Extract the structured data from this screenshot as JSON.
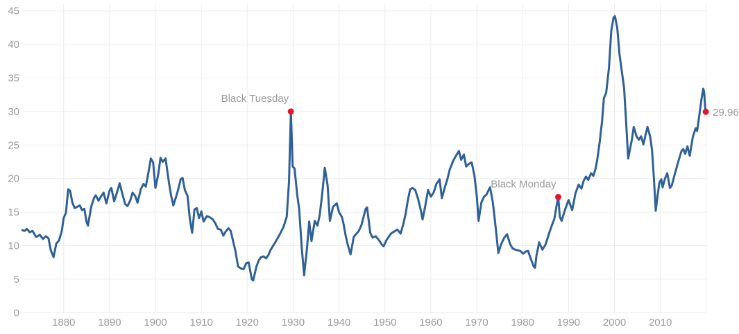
{
  "chart_data": {
    "type": "line",
    "title": "",
    "xlabel": "",
    "ylabel": "",
    "grid": true,
    "legend": false,
    "xlim": [
      1871,
      2020
    ],
    "ylim": [
      0,
      45
    ],
    "y_ticks": [
      {
        "value": 0,
        "label": "0"
      },
      {
        "value": 5,
        "label": "5"
      },
      {
        "value": 10,
        "label": "10"
      },
      {
        "value": 15,
        "label": "15"
      },
      {
        "value": 20,
        "label": "20"
      },
      {
        "value": 25,
        "label": "25"
      },
      {
        "value": 30,
        "label": "30"
      },
      {
        "value": 35,
        "label": "35"
      },
      {
        "value": 40,
        "label": "40"
      },
      {
        "value": 45,
        "label": "45"
      }
    ],
    "x_ticks": [
      {
        "year": 1880,
        "label": "1880"
      },
      {
        "year": 1890,
        "label": "1890"
      },
      {
        "year": 1900,
        "label": "1900"
      },
      {
        "year": 1910,
        "label": "1910"
      },
      {
        "year": 1920,
        "label": "1920"
      },
      {
        "year": 1930,
        "label": "1930"
      },
      {
        "year": 1940,
        "label": "1940"
      },
      {
        "year": 1950,
        "label": "1950"
      },
      {
        "year": 1960,
        "label": "1960"
      },
      {
        "year": 1970,
        "label": "1970"
      },
      {
        "year": 1980,
        "label": "1980"
      },
      {
        "year": 1990,
        "label": "1990"
      },
      {
        "year": 2000,
        "label": "2000"
      },
      {
        "year": 2010,
        "label": "2010"
      },
      {
        "year": 2020,
        "label": ""
      }
    ],
    "series": {
      "points": [
        [
          1871.0,
          12.3
        ],
        [
          1871.5,
          12.2
        ],
        [
          1872.0,
          12.5
        ],
        [
          1872.6,
          12.0
        ],
        [
          1873.2,
          12.2
        ],
        [
          1874.0,
          11.3
        ],
        [
          1874.8,
          11.6
        ],
        [
          1875.5,
          11.0
        ],
        [
          1876.1,
          11.4
        ],
        [
          1876.7,
          11.1
        ],
        [
          1877.2,
          9.3
        ],
        [
          1877.8,
          8.3
        ],
        [
          1878.4,
          10.3
        ],
        [
          1879.0,
          10.8
        ],
        [
          1879.6,
          12.2
        ],
        [
          1880.0,
          14.1
        ],
        [
          1880.5,
          14.9
        ],
        [
          1881.0,
          18.4
        ],
        [
          1881.4,
          18.2
        ],
        [
          1881.9,
          16.4
        ],
        [
          1882.4,
          15.6
        ],
        [
          1883.0,
          15.8
        ],
        [
          1883.5,
          16.0
        ],
        [
          1884.0,
          15.3
        ],
        [
          1884.5,
          15.5
        ],
        [
          1885.0,
          13.5
        ],
        [
          1885.3,
          13.0
        ],
        [
          1886.0,
          15.8
        ],
        [
          1886.6,
          17.1
        ],
        [
          1887.0,
          17.5
        ],
        [
          1887.6,
          16.7
        ],
        [
          1888.2,
          17.4
        ],
        [
          1888.7,
          17.9
        ],
        [
          1889.3,
          16.3
        ],
        [
          1890.0,
          18.2
        ],
        [
          1890.4,
          18.6
        ],
        [
          1891.0,
          16.6
        ],
        [
          1891.6,
          17.9
        ],
        [
          1892.2,
          19.3
        ],
        [
          1892.8,
          17.7
        ],
        [
          1893.4,
          16.2
        ],
        [
          1893.9,
          15.9
        ],
        [
          1894.5,
          16.7
        ],
        [
          1895.0,
          17.9
        ],
        [
          1895.6,
          17.4
        ],
        [
          1896.1,
          16.4
        ],
        [
          1896.8,
          18.4
        ],
        [
          1897.4,
          19.2
        ],
        [
          1897.9,
          18.8
        ],
        [
          1898.5,
          21.0
        ],
        [
          1899.0,
          23.0
        ],
        [
          1899.5,
          22.4
        ],
        [
          1900.0,
          18.6
        ],
        [
          1900.6,
          20.6
        ],
        [
          1901.1,
          23.1
        ],
        [
          1901.6,
          22.5
        ],
        [
          1902.2,
          23.0
        ],
        [
          1902.9,
          19.6
        ],
        [
          1903.4,
          17.5
        ],
        [
          1903.9,
          16.0
        ],
        [
          1904.5,
          17.3
        ],
        [
          1904.9,
          18.2
        ],
        [
          1905.5,
          19.9
        ],
        [
          1905.9,
          20.1
        ],
        [
          1906.4,
          18.3
        ],
        [
          1907.0,
          17.4
        ],
        [
          1907.5,
          14.0
        ],
        [
          1908.0,
          11.9
        ],
        [
          1908.5,
          15.4
        ],
        [
          1909.0,
          15.6
        ],
        [
          1909.5,
          14.1
        ],
        [
          1910.0,
          15.1
        ],
        [
          1910.5,
          13.6
        ],
        [
          1911.2,
          14.4
        ],
        [
          1911.9,
          14.2
        ],
        [
          1912.5,
          13.9
        ],
        [
          1913.0,
          13.4
        ],
        [
          1913.6,
          12.5
        ],
        [
          1914.2,
          12.4
        ],
        [
          1914.8,
          11.5
        ],
        [
          1915.3,
          12.1
        ],
        [
          1915.9,
          12.6
        ],
        [
          1916.4,
          12.2
        ],
        [
          1917.0,
          10.4
        ],
        [
          1917.4,
          9.3
        ],
        [
          1918.0,
          6.9
        ],
        [
          1918.6,
          6.6
        ],
        [
          1919.2,
          6.5
        ],
        [
          1919.8,
          7.4
        ],
        [
          1920.3,
          7.5
        ],
        [
          1921.0,
          5.0
        ],
        [
          1921.3,
          4.8
        ],
        [
          1922.0,
          6.9
        ],
        [
          1922.5,
          7.8
        ],
        [
          1923.0,
          8.3
        ],
        [
          1923.6,
          8.4
        ],
        [
          1924.1,
          8.1
        ],
        [
          1924.6,
          8.6
        ],
        [
          1925.1,
          9.4
        ],
        [
          1926.1,
          10.5
        ],
        [
          1927.1,
          11.7
        ],
        [
          1927.9,
          12.8
        ],
        [
          1928.6,
          14.3
        ],
        [
          1929.1,
          19.5
        ],
        [
          1929.5,
          30.0
        ],
        [
          1929.9,
          21.8
        ],
        [
          1930.3,
          21.5
        ],
        [
          1930.9,
          17.5
        ],
        [
          1931.3,
          15.5
        ],
        [
          1931.9,
          9.5
        ],
        [
          1932.4,
          5.6
        ],
        [
          1933.0,
          9.5
        ],
        [
          1933.5,
          13.6
        ],
        [
          1934.0,
          10.7
        ],
        [
          1934.7,
          13.7
        ],
        [
          1935.3,
          13.0
        ],
        [
          1935.8,
          14.6
        ],
        [
          1936.3,
          17.5
        ],
        [
          1936.9,
          21.6
        ],
        [
          1937.5,
          19.0
        ],
        [
          1938.0,
          13.7
        ],
        [
          1938.7,
          15.8
        ],
        [
          1939.5,
          16.3
        ],
        [
          1940.0,
          15.0
        ],
        [
          1940.6,
          14.3
        ],
        [
          1940.9,
          13.5
        ],
        [
          1941.5,
          11.3
        ],
        [
          1942.0,
          9.9
        ],
        [
          1942.5,
          8.7
        ],
        [
          1943.2,
          11.3
        ],
        [
          1944.3,
          12.2
        ],
        [
          1944.9,
          13.1
        ],
        [
          1945.8,
          15.5
        ],
        [
          1946.1,
          15.7
        ],
        [
          1946.8,
          11.9
        ],
        [
          1947.3,
          11.2
        ],
        [
          1948.0,
          11.4
        ],
        [
          1948.7,
          10.8
        ],
        [
          1949.3,
          10.2
        ],
        [
          1949.7,
          9.9
        ],
        [
          1950.3,
          10.8
        ],
        [
          1951.3,
          11.8
        ],
        [
          1952.0,
          12.1
        ],
        [
          1952.7,
          12.4
        ],
        [
          1953.4,
          11.8
        ],
        [
          1954.0,
          13.2
        ],
        [
          1954.5,
          14.7
        ],
        [
          1955.0,
          16.8
        ],
        [
          1955.5,
          18.4
        ],
        [
          1956.0,
          18.6
        ],
        [
          1956.6,
          18.3
        ],
        [
          1957.2,
          17.0
        ],
        [
          1957.8,
          15.3
        ],
        [
          1958.2,
          13.9
        ],
        [
          1958.8,
          16.0
        ],
        [
          1959.4,
          18.3
        ],
        [
          1960.0,
          17.3
        ],
        [
          1960.6,
          17.9
        ],
        [
          1961.2,
          19.2
        ],
        [
          1961.9,
          19.9
        ],
        [
          1962.4,
          17.1
        ],
        [
          1963.0,
          18.6
        ],
        [
          1963.6,
          19.9
        ],
        [
          1964.1,
          21.3
        ],
        [
          1964.9,
          22.7
        ],
        [
          1965.4,
          23.3
        ],
        [
          1966.1,
          24.1
        ],
        [
          1966.6,
          22.8
        ],
        [
          1967.2,
          23.6
        ],
        [
          1967.7,
          21.8
        ],
        [
          1968.3,
          22.2
        ],
        [
          1968.9,
          22.4
        ],
        [
          1969.5,
          20.4
        ],
        [
          1970.0,
          17.4
        ],
        [
          1970.4,
          13.7
        ],
        [
          1971.0,
          16.4
        ],
        [
          1971.6,
          17.3
        ],
        [
          1972.1,
          17.6
        ],
        [
          1972.9,
          18.7
        ],
        [
          1973.5,
          16.5
        ],
        [
          1974.0,
          13.5
        ],
        [
          1974.7,
          8.9
        ],
        [
          1975.3,
          10.2
        ],
        [
          1976.0,
          11.2
        ],
        [
          1976.6,
          11.7
        ],
        [
          1977.3,
          10.2
        ],
        [
          1977.8,
          9.6
        ],
        [
          1978.4,
          9.4
        ],
        [
          1979.0,
          9.3
        ],
        [
          1979.5,
          9.2
        ],
        [
          1980.1,
          8.8
        ],
        [
          1980.6,
          9.1
        ],
        [
          1981.2,
          9.2
        ],
        [
          1981.8,
          8.0
        ],
        [
          1982.4,
          6.9
        ],
        [
          1982.7,
          6.7
        ],
        [
          1983.0,
          8.5
        ],
        [
          1983.6,
          10.5
        ],
        [
          1984.3,
          9.4
        ],
        [
          1985.0,
          10.2
        ],
        [
          1985.7,
          11.7
        ],
        [
          1986.3,
          12.9
        ],
        [
          1986.9,
          14.0
        ],
        [
          1987.4,
          16.0
        ],
        [
          1987.75,
          17.25
        ],
        [
          1988.1,
          14.3
        ],
        [
          1988.5,
          13.7
        ],
        [
          1989.2,
          15.3
        ],
        [
          1990.0,
          16.8
        ],
        [
          1990.8,
          15.3
        ],
        [
          1991.5,
          17.8
        ],
        [
          1992.2,
          19.1
        ],
        [
          1992.8,
          18.5
        ],
        [
          1993.3,
          19.7
        ],
        [
          1993.8,
          20.3
        ],
        [
          1994.3,
          19.8
        ],
        [
          1994.9,
          20.8
        ],
        [
          1995.4,
          20.4
        ],
        [
          1995.9,
          21.5
        ],
        [
          1996.3,
          23.0
        ],
        [
          1996.8,
          25.5
        ],
        [
          1997.3,
          28.5
        ],
        [
          1997.7,
          32.0
        ],
        [
          1998.2,
          32.8
        ],
        [
          1998.8,
          36.5
        ],
        [
          1999.3,
          42.0
        ],
        [
          1999.8,
          44.0
        ],
        [
          2000.1,
          44.2
        ],
        [
          2000.6,
          42.5
        ],
        [
          2001.1,
          38.5
        ],
        [
          2001.6,
          36.0
        ],
        [
          2002.1,
          33.5
        ],
        [
          2002.5,
          29.0
        ],
        [
          2003.0,
          23.0
        ],
        [
          2003.8,
          25.8
        ],
        [
          2004.2,
          27.7
        ],
        [
          2004.8,
          26.3
        ],
        [
          2005.3,
          25.8
        ],
        [
          2005.8,
          26.3
        ],
        [
          2006.3,
          25.1
        ],
        [
          2006.8,
          26.6
        ],
        [
          2007.2,
          27.7
        ],
        [
          2007.8,
          26.2
        ],
        [
          2008.2,
          24.2
        ],
        [
          2008.6,
          20.0
        ],
        [
          2009.0,
          15.2
        ],
        [
          2009.4,
          17.5
        ],
        [
          2009.8,
          19.4
        ],
        [
          2010.2,
          19.9
        ],
        [
          2010.5,
          18.7
        ],
        [
          2011.0,
          20.0
        ],
        [
          2011.5,
          20.8
        ],
        [
          2012.1,
          18.6
        ],
        [
          2012.5,
          19.0
        ],
        [
          2013.2,
          20.8
        ],
        [
          2013.9,
          22.5
        ],
        [
          2014.6,
          24.1
        ],
        [
          2015.0,
          24.4
        ],
        [
          2015.4,
          23.7
        ],
        [
          2015.9,
          24.8
        ],
        [
          2016.4,
          23.4
        ],
        [
          2017.1,
          26.3
        ],
        [
          2017.7,
          27.5
        ],
        [
          2018.0,
          27.1
        ],
        [
          2018.5,
          29.5
        ],
        [
          2019.0,
          32.0
        ],
        [
          2019.35,
          33.4
        ],
        [
          2019.55,
          32.9
        ],
        [
          2019.75,
          30.8
        ],
        [
          2019.9,
          29.96
        ]
      ]
    },
    "annotations": [
      {
        "name": "black-tuesday",
        "label": "Black Tuesday",
        "x": 1929.5,
        "y": 30.0,
        "label_side": "left"
      },
      {
        "name": "black-monday",
        "label": "Black Monday",
        "x": 1987.75,
        "y": 17.25,
        "label_side": "left"
      },
      {
        "name": "current-value",
        "label": "29.96",
        "x": 2019.9,
        "y": 29.96,
        "label_side": "right"
      }
    ],
    "style": {
      "line_color": "#2f6096",
      "marker_color": "#e8132d",
      "grid_color": "#ececec",
      "axis_label_color": "#9a9a9a",
      "annotation_color": "#9a9a9a",
      "background": "#ffffff"
    }
  }
}
